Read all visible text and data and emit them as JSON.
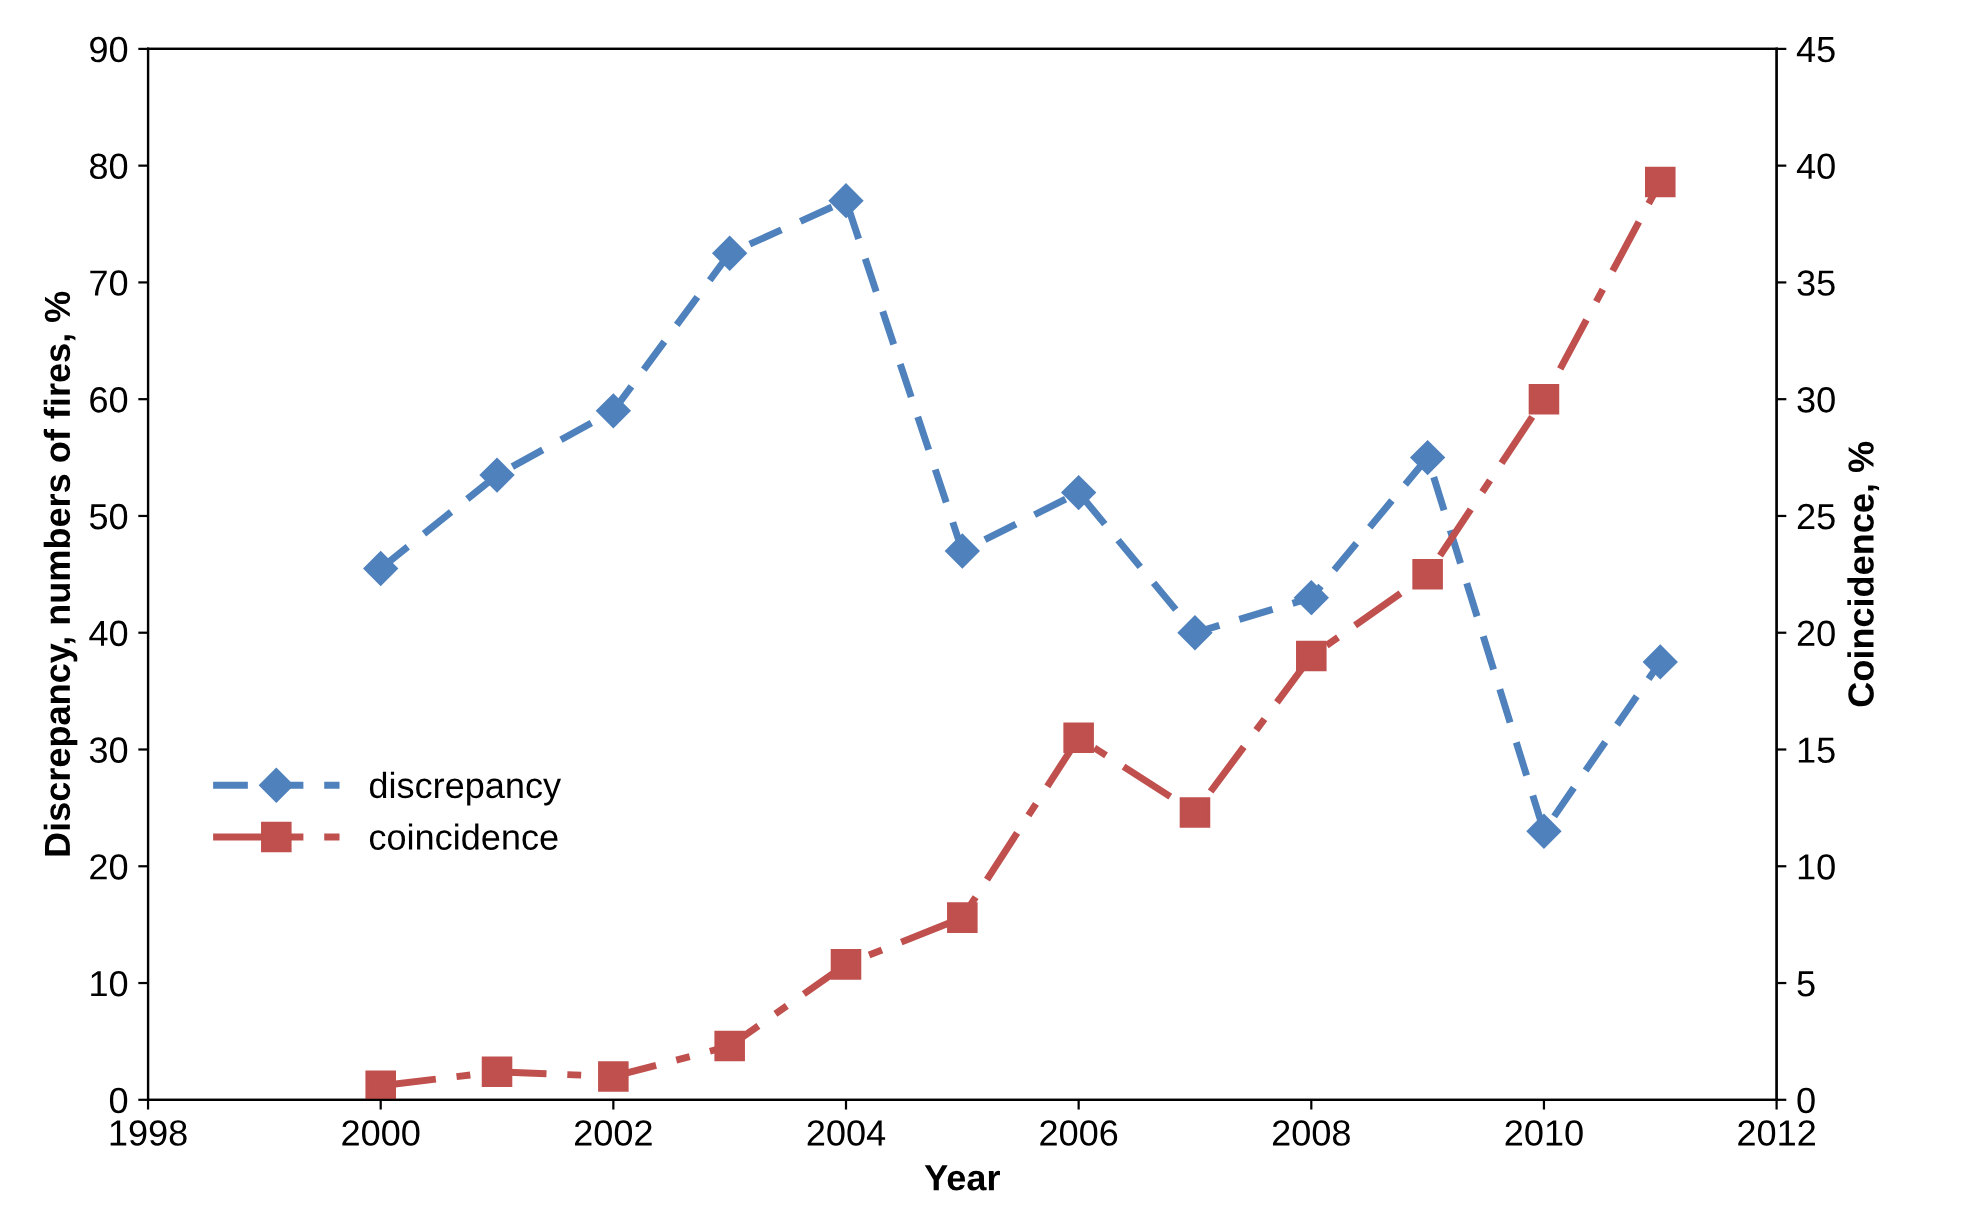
{
  "chart_data": {
    "type": "line",
    "xlabel": "Year",
    "ylabel": "Discrepancy, numbers of fires, %",
    "y2label": "Coincidence, %",
    "x": [
      2000,
      2001,
      2002,
      2003,
      2004,
      2005,
      2006,
      2007,
      2008,
      2009,
      2010,
      2011
    ],
    "series": [
      {
        "name": "discrepancy",
        "color": "#4f81bd",
        "marker": "diamond",
        "line_style": "dashed",
        "values": [
          45.5,
          53.5,
          59,
          72.5,
          77,
          47,
          52,
          40,
          43,
          55,
          23,
          37.5
        ]
      },
      {
        "name": "coincidence",
        "color": "#c0504d",
        "marker": "square",
        "line_style": "dashdot",
        "axis": "y2",
        "values": [
          0.6,
          1.2,
          1.0,
          2.3,
          5.8,
          7.8,
          15.5,
          12.3,
          19,
          22.5,
          30,
          39.3
        ]
      }
    ],
    "xlim": [
      1998,
      2012
    ],
    "xticks": [
      1998,
      2000,
      2002,
      2004,
      2006,
      2008,
      2010,
      2012
    ],
    "ylim": [
      0,
      90
    ],
    "yticks": [
      0,
      10,
      20,
      30,
      40,
      50,
      60,
      70,
      80,
      90
    ],
    "y2lim": [
      0,
      45
    ],
    "y2ticks": [
      0,
      5,
      10,
      15,
      20,
      25,
      30,
      35,
      40,
      45
    ],
    "legend": "left",
    "grid": false
  }
}
